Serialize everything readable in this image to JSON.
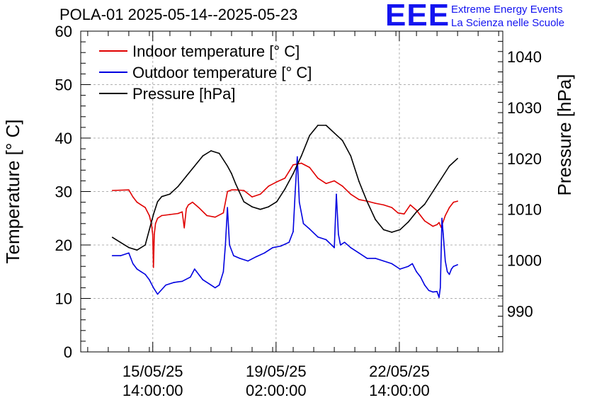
{
  "header": {
    "title": "POLA-01 2025-05-14--2025-05-23",
    "logo": "EEE",
    "logo_line1": "Extreme Energy Events",
    "logo_line2": "La Scienza nelle Scuole"
  },
  "colors": {
    "indoor": "#e00000",
    "outdoor": "#0000e0",
    "pressure": "#000000",
    "grid": "#b0b0b0",
    "logo": "#1414f0"
  },
  "chart_data": {
    "type": "line",
    "title": "POLA-01 2025-05-14--2025-05-23",
    "ylabel": "Temperature [° C]",
    "y2label": "Pressure [hPa]",
    "xlabel": "",
    "x_unit": "days since 2025-05-14 00:00",
    "xlim": [
      -0.17,
      10.1
    ],
    "ylim": [
      0,
      60
    ],
    "y2lim": [
      982,
      1045
    ],
    "yticks": [
      0,
      10,
      20,
      30,
      40,
      50,
      60
    ],
    "y2ticks": [
      990,
      1000,
      1010,
      1020,
      1030,
      1040
    ],
    "xticks": [
      {
        "x": 1.583,
        "line1": "15/05/25",
        "line2": "14:00:00"
      },
      {
        "x": 4.583,
        "line1": "19/05/25",
        "line2": "02:00:00"
      },
      {
        "x": 7.583,
        "line1": "22/05/25",
        "line2": "14:00:00"
      }
    ],
    "grid": true,
    "legend": "top-left",
    "series": [
      {
        "name": "Indoor temperature [° C]",
        "axis": "left",
        "x": [
          0.6,
          1.0,
          1.1,
          1.2,
          1.3,
          1.4,
          1.5,
          1.55,
          1.58,
          1.6,
          1.62,
          1.65,
          1.7,
          1.8,
          2.0,
          2.2,
          2.3,
          2.35,
          2.4,
          2.45,
          2.55,
          2.7,
          2.9,
          3.1,
          3.3,
          3.4,
          3.5,
          3.6,
          3.8,
          4.0,
          4.2,
          4.4,
          4.6,
          4.8,
          5.0,
          5.2,
          5.4,
          5.6,
          5.8,
          6.0,
          6.2,
          6.4,
          6.6,
          6.8,
          7.0,
          7.2,
          7.4,
          7.55,
          7.7,
          7.85,
          8.0,
          8.1,
          8.2,
          8.3,
          8.4,
          8.5,
          8.55,
          8.6,
          8.7,
          8.8,
          8.9,
          9.0
        ],
        "y": [
          30.2,
          30.3,
          29.0,
          28.0,
          27.5,
          27.0,
          25.5,
          24.0,
          22.0,
          15.8,
          22.0,
          24.0,
          25.0,
          25.5,
          25.7,
          25.9,
          26.2,
          23.2,
          26.8,
          27.5,
          28.0,
          27.0,
          25.5,
          25.2,
          26.0,
          30.0,
          30.3,
          30.3,
          30.2,
          29.0,
          29.5,
          31.0,
          31.8,
          32.5,
          35.0,
          35.3,
          34.5,
          32.5,
          31.5,
          32.0,
          31.0,
          29.5,
          28.5,
          28.2,
          27.8,
          27.5,
          27.0,
          26.0,
          25.8,
          27.5,
          26.5,
          25.5,
          24.5,
          24.0,
          23.5,
          23.8,
          24.2,
          23.3,
          25.5,
          27.0,
          28.0,
          28.2
        ]
      },
      {
        "name": "Outdoor temperature [° C]",
        "axis": "left",
        "x": [
          0.6,
          0.8,
          1.0,
          1.1,
          1.2,
          1.3,
          1.4,
          1.5,
          1.6,
          1.7,
          1.9,
          2.1,
          2.3,
          2.5,
          2.6,
          2.8,
          3.0,
          3.1,
          3.2,
          3.3,
          3.35,
          3.4,
          3.45,
          3.55,
          3.7,
          3.9,
          4.1,
          4.3,
          4.5,
          4.7,
          4.9,
          5.0,
          5.05,
          5.1,
          5.15,
          5.25,
          5.4,
          5.6,
          5.8,
          6.0,
          6.05,
          6.1,
          6.15,
          6.25,
          6.4,
          6.6,
          6.8,
          7.0,
          7.2,
          7.4,
          7.6,
          7.8,
          7.9,
          8.0,
          8.1,
          8.2,
          8.3,
          8.4,
          8.5,
          8.55,
          8.58,
          8.62,
          8.65,
          8.7,
          8.75,
          8.8,
          8.85,
          8.9,
          9.0
        ],
        "y": [
          18.0,
          18.0,
          18.5,
          16.5,
          15.5,
          15.0,
          14.5,
          13.5,
          12.0,
          10.8,
          12.5,
          13.0,
          13.2,
          14.0,
          15.5,
          13.5,
          12.5,
          12.0,
          12.5,
          15.0,
          20.0,
          27.0,
          20.0,
          18.0,
          17.5,
          17.0,
          17.8,
          18.5,
          19.5,
          19.8,
          20.5,
          22.5,
          30.0,
          36.5,
          28.0,
          24.0,
          23.0,
          21.5,
          21.0,
          19.5,
          29.5,
          22.0,
          20.0,
          20.5,
          19.5,
          18.5,
          17.5,
          17.5,
          17.0,
          16.5,
          15.5,
          16.0,
          16.5,
          15.0,
          14.0,
          12.5,
          11.5,
          11.2,
          11.3,
          10.2,
          12.0,
          25.0,
          22.0,
          17.0,
          15.0,
          14.5,
          15.5,
          16.0,
          16.3
        ]
      },
      {
        "name": "Pressure [hPa]",
        "axis": "right",
        "x": [
          0.6,
          0.8,
          1.0,
          1.2,
          1.4,
          1.5,
          1.6,
          1.7,
          1.8,
          2.0,
          2.2,
          2.4,
          2.6,
          2.8,
          3.0,
          3.2,
          3.4,
          3.5,
          3.6,
          3.8,
          4.0,
          4.2,
          4.4,
          4.6,
          4.8,
          5.0,
          5.2,
          5.4,
          5.6,
          5.8,
          6.0,
          6.2,
          6.4,
          6.6,
          6.8,
          7.0,
          7.2,
          7.4,
          7.6,
          7.8,
          8.0,
          8.2,
          8.4,
          8.6,
          8.8,
          9.0
        ],
        "y": [
          1004.5,
          1003.5,
          1002.5,
          1002.0,
          1003.0,
          1006.0,
          1009.0,
          1011.5,
          1012.5,
          1013.0,
          1014.5,
          1016.5,
          1018.5,
          1020.5,
          1021.5,
          1021.0,
          1018.5,
          1017.0,
          1015.0,
          1011.5,
          1010.5,
          1010.0,
          1010.5,
          1011.5,
          1014.0,
          1017.0,
          1020.5,
          1024.5,
          1026.5,
          1026.5,
          1025.0,
          1023.5,
          1020.5,
          1015.5,
          1011.5,
          1008.0,
          1006.0,
          1005.5,
          1006.0,
          1007.5,
          1009.5,
          1011.0,
          1013.5,
          1016.0,
          1018.5,
          1020.0
        ]
      }
    ]
  }
}
